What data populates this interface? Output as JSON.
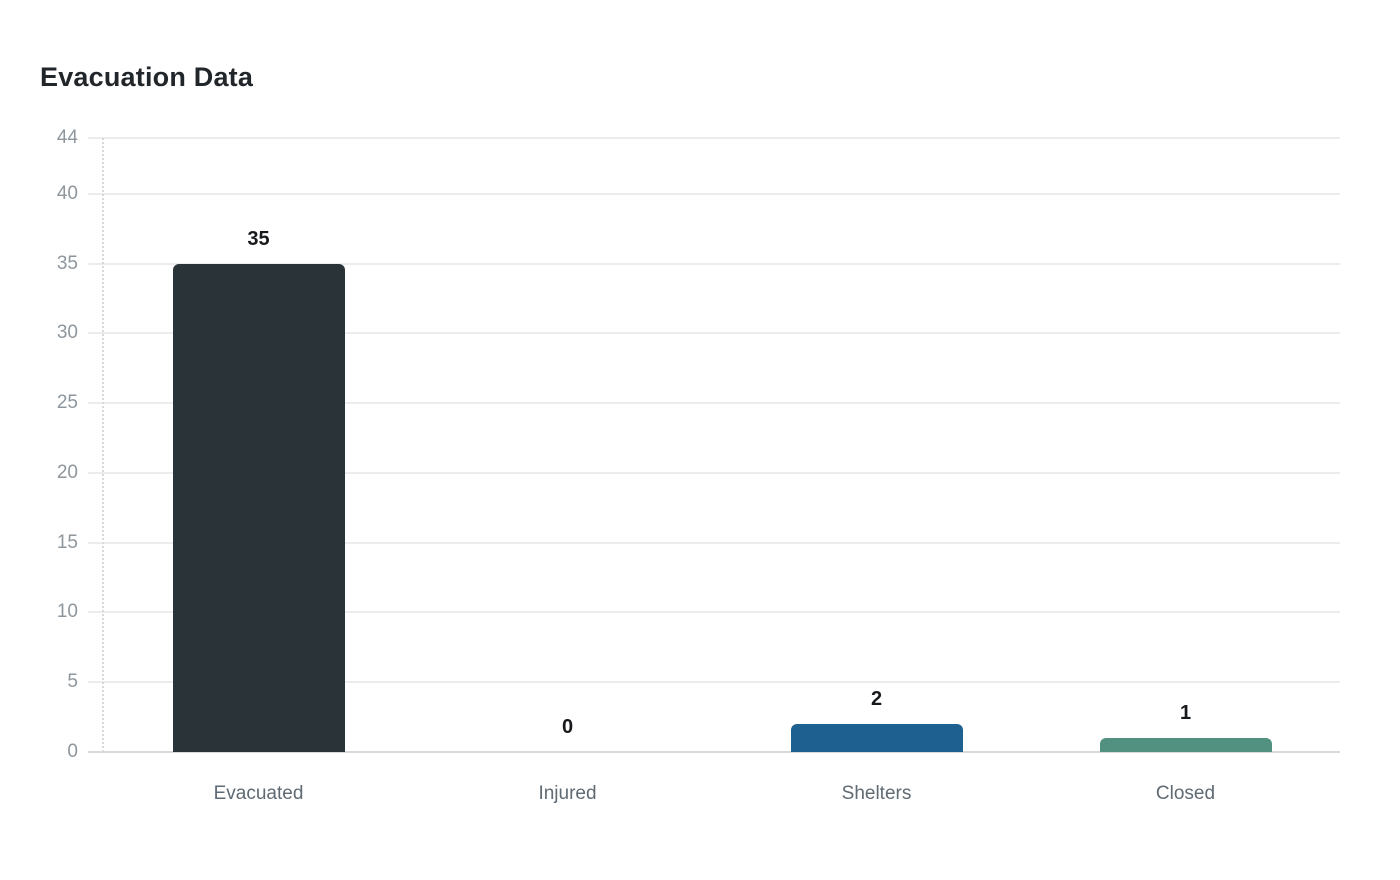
{
  "chart_data": {
    "type": "bar",
    "title": "Evacuation Data",
    "categories": [
      "Evacuated",
      "Injured",
      "Shelters",
      "Closed"
    ],
    "values": [
      35,
      0,
      2,
      1
    ],
    "value_labels": [
      "35",
      "0",
      "2",
      "1"
    ],
    "bar_colors": [
      "#2a3338",
      null,
      "#1e6191",
      "#529180"
    ],
    "xlabel": "",
    "ylabel": "",
    "ylim": [
      0,
      44
    ],
    "yticks": [
      0,
      5,
      10,
      15,
      20,
      25,
      30,
      35,
      40,
      44
    ],
    "grid": true,
    "legend": false
  },
  "style": {
    "background": "#ffffff",
    "title_color": "#21262b",
    "grid_color": "#ececec",
    "axis_line_color": "#d9d9d9",
    "tick_label_color": "#8e969d",
    "category_label_color": "#5f6a73",
    "value_label_color": "#17191c"
  }
}
